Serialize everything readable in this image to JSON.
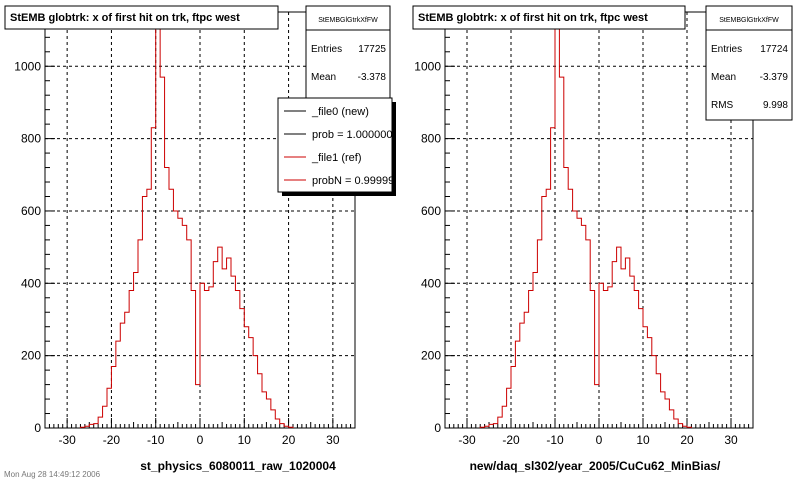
{
  "footer_text": "Mon Aug 28 14:49:12 2006",
  "colors": {
    "new": "#000000",
    "ref": "#cc0000",
    "grid": "#000000",
    "background": "#ffffff"
  },
  "chart_data": [
    {
      "type": "histogram",
      "title": "StEMB globtrk: x of first hit on trk, ftpc west",
      "xlabel": "st_physics_6080011_raw_1020004",
      "ylabel": "",
      "xlim": [
        -35,
        35
      ],
      "ylim": [
        0,
        1150
      ],
      "x_ticks": [
        -30,
        -20,
        -10,
        0,
        10,
        20,
        30
      ],
      "y_ticks": [
        200,
        400,
        600,
        800,
        1000
      ],
      "grid": true,
      "stats": {
        "name": "StEMBGlGtrkXfFW",
        "rows": [
          {
            "label": "Entries",
            "value": "17725"
          },
          {
            "label": "Mean",
            "value": "-3.378"
          }
        ]
      },
      "legend": {
        "placement": "top-right",
        "entries": [
          {
            "label": "_file0 (new)",
            "color": "#000000"
          },
          {
            "label": "prob = 1.000000",
            "color": "#000000"
          },
          {
            "label": "_file1 (ref)",
            "color": "#cc0000"
          },
          {
            "label": "probN = 0.99999",
            "color": "#cc0000"
          }
        ]
      },
      "series": [
        {
          "name": "_file1 (ref)",
          "color": "#cc0000",
          "bin_edges_start": -27,
          "bin_width": 1,
          "values": [
            2,
            5,
            10,
            12,
            30,
            60,
            110,
            170,
            240,
            290,
            320,
            380,
            430,
            520,
            640,
            660,
            830,
            1140,
            970,
            720,
            660,
            600,
            580,
            560,
            520,
            380,
            120,
            400,
            380,
            390,
            460,
            500,
            440,
            470,
            420,
            380,
            330,
            280,
            250,
            200,
            150,
            100,
            80,
            50,
            25,
            12,
            5,
            2
          ]
        }
      ]
    },
    {
      "type": "histogram",
      "title": "StEMB globtrk: x of first hit on trk, ftpc west",
      "xlabel": "new/daq_sl302/year_2005/CuCu62_MinBias/",
      "ylabel": "",
      "xlim": [
        -35,
        35
      ],
      "ylim": [
        0,
        1150
      ],
      "x_ticks": [
        -30,
        -20,
        -10,
        0,
        10,
        20,
        30
      ],
      "y_ticks": [
        200,
        400,
        600,
        800,
        1000
      ],
      "grid": true,
      "stats": {
        "name": "StEMBGlGtrkXfFW",
        "rows": [
          {
            "label": "Entries",
            "value": "17724"
          },
          {
            "label": "Mean",
            "value": "-3.379"
          },
          {
            "label": "RMS",
            "value": "9.998"
          }
        ]
      },
      "series": [
        {
          "name": "",
          "color": "#cc0000",
          "bin_edges_start": -27,
          "bin_width": 1,
          "values": [
            2,
            5,
            10,
            12,
            30,
            60,
            110,
            170,
            240,
            290,
            320,
            380,
            430,
            520,
            640,
            660,
            830,
            1140,
            970,
            720,
            660,
            600,
            580,
            560,
            520,
            380,
            120,
            400,
            380,
            390,
            460,
            500,
            440,
            470,
            420,
            380,
            330,
            280,
            250,
            200,
            150,
            100,
            80,
            50,
            25,
            12,
            5,
            2
          ]
        }
      ]
    }
  ]
}
